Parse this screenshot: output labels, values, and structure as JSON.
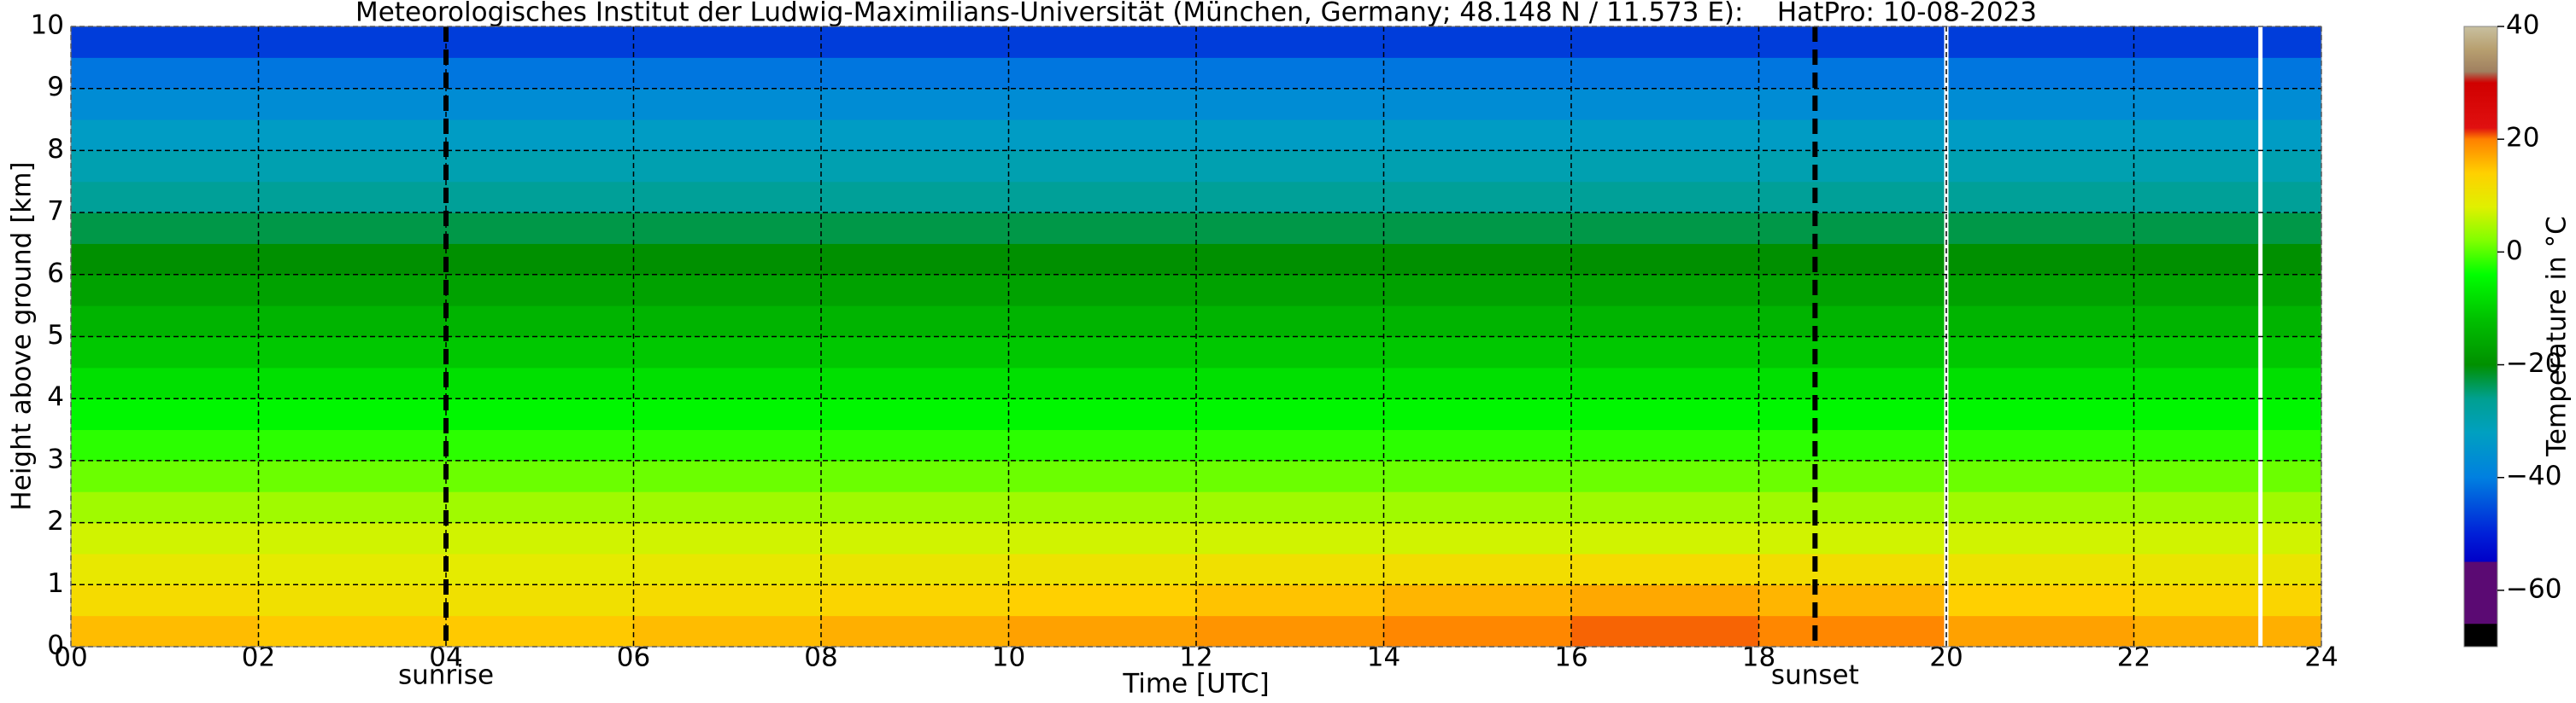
{
  "chart_data": {
    "type": "heatmap",
    "title": "Meteorologisches Institut der Ludwig-Maximilians-Universität (München, Germany; 48.148 N / 11.573 E):    HatPro: 10-08-2023",
    "x_label": "Time [UTC]",
    "y_label": "Height above ground [km]",
    "colorbar_label": "Temperature in °C",
    "x_edges": [
      0,
      2,
      4,
      6,
      8,
      10,
      12,
      14,
      16,
      18,
      20,
      22,
      24
    ],
    "y_edges": [
      0,
      0.5,
      1,
      1.5,
      2,
      2.5,
      3,
      3.5,
      4,
      4.5,
      5,
      5.5,
      6,
      6.5,
      7,
      7.5,
      8,
      8.5,
      9,
      9.5,
      10
    ],
    "z": [
      [
        15.5,
        14.5,
        14.5,
        15.5,
        16.5,
        17.5,
        18.5,
        19.5,
        20.5,
        19.5,
        17.5,
        16.5
      ],
      [
        12,
        11,
        11,
        12,
        13,
        14,
        15,
        16,
        17,
        16,
        14,
        13
      ],
      [
        9.5,
        9,
        9,
        9.5,
        10,
        10.5,
        11,
        11.5,
        12,
        11.5,
        10.5,
        10
      ],
      [
        7,
        7,
        7,
        7,
        7,
        7,
        7,
        7,
        7,
        7,
        7,
        7
      ],
      [
        4,
        4,
        4,
        4,
        4,
        4,
        4,
        4,
        4,
        4,
        4,
        4
      ],
      [
        1,
        1,
        1,
        1,
        1,
        1,
        1,
        1,
        1,
        1,
        1,
        1
      ],
      [
        -2,
        -2,
        -2,
        -2,
        -2,
        -2,
        -2,
        -2,
        -2,
        -2,
        -2,
        -2
      ],
      [
        -5,
        -5,
        -5,
        -5,
        -5,
        -5,
        -5,
        -5,
        -5,
        -5,
        -5,
        -5
      ],
      [
        -8,
        -8,
        -8,
        -8,
        -8,
        -8,
        -8,
        -8,
        -8,
        -8,
        -8,
        -8
      ],
      [
        -11,
        -11,
        -11,
        -11,
        -11,
        -11,
        -11,
        -11,
        -11,
        -11,
        -11,
        -11
      ],
      [
        -14,
        -14,
        -14,
        -14,
        -14,
        -14,
        -14,
        -14,
        -14,
        -14,
        -14,
        -14
      ],
      [
        -17,
        -17,
        -17,
        -17,
        -17,
        -17,
        -17,
        -17,
        -17,
        -17,
        -17,
        -17
      ],
      [
        -20,
        -20,
        -20,
        -20,
        -20,
        -20,
        -20,
        -20,
        -20,
        -20,
        -20,
        -20
      ],
      [
        -23,
        -23,
        -23,
        -23,
        -23,
        -23,
        -23,
        -23,
        -23,
        -23,
        -23,
        -23
      ],
      [
        -27,
        -27,
        -27,
        -27,
        -27,
        -27,
        -27,
        -27,
        -27,
        -27,
        -27,
        -27
      ],
      [
        -30,
        -30,
        -30,
        -30,
        -30,
        -30,
        -30,
        -30,
        -30,
        -30,
        -30,
        -30
      ],
      [
        -33,
        -33,
        -33,
        -33,
        -33,
        -33,
        -33,
        -33,
        -33,
        -33,
        -33,
        -33
      ],
      [
        -37,
        -37,
        -37,
        -37,
        -37,
        -37,
        -37,
        -37,
        -37,
        -37,
        -37,
        -37
      ],
      [
        -41,
        -41,
        -41,
        -41,
        -41,
        -41,
        -41,
        -41,
        -41,
        -41,
        -41,
        -41
      ],
      [
        -47,
        -47,
        -47,
        -47,
        -47,
        -47,
        -47,
        -47,
        -47,
        -47,
        -47,
        -47
      ]
    ],
    "xlim": [
      0,
      24
    ],
    "xticks": [
      {
        "value": 0,
        "label": "00"
      },
      {
        "value": 2,
        "label": "02"
      },
      {
        "value": 4,
        "label": "04"
      },
      {
        "value": 6,
        "label": "06"
      },
      {
        "value": 8,
        "label": "08"
      },
      10,
      12,
      14,
      16,
      18,
      20,
      22,
      24
    ],
    "ylim": [
      0,
      10
    ],
    "yticks": [
      0,
      1,
      2,
      3,
      4,
      5,
      6,
      7,
      8,
      9,
      10
    ],
    "clim": [
      -70,
      40
    ],
    "cticks": [
      {
        "value": -60,
        "label": "−60"
      },
      {
        "value": -40,
        "label": "−40"
      },
      {
        "value": -20,
        "label": "−20"
      },
      0,
      20,
      40
    ],
    "colorscale": [
      [
        -70,
        "#000000"
      ],
      [
        -66,
        "#000000"
      ],
      [
        -65.9,
        "#5b0a73"
      ],
      [
        -55,
        "#5b0a73"
      ],
      [
        -54.9,
        "#0000c8"
      ],
      [
        -50,
        "#0020d8"
      ],
      [
        -40,
        "#0080e0"
      ],
      [
        -32,
        "#00a0c0"
      ],
      [
        -26,
        "#00a090"
      ],
      [
        -20,
        "#009000"
      ],
      [
        -12,
        "#00c000"
      ],
      [
        -4,
        "#00ff00"
      ],
      [
        2,
        "#80ff00"
      ],
      [
        8,
        "#e0f000"
      ],
      [
        14,
        "#ffd000"
      ],
      [
        20,
        "#ff8000"
      ],
      [
        22,
        "#e01010"
      ],
      [
        30,
        "#d00000"
      ],
      [
        32,
        "#a08060"
      ],
      [
        36,
        "#b8a070"
      ],
      [
        40,
        "#c8c0a0"
      ]
    ],
    "grid": true,
    "annotations": [
      {
        "label": "sunrise",
        "x": 4.0
      },
      {
        "label": "sunset",
        "x": 18.6
      }
    ],
    "gaps": [
      20.0,
      23.35
    ]
  }
}
